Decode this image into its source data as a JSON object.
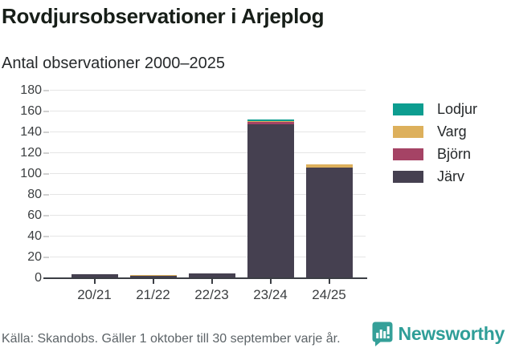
{
  "header": {
    "title": "Rovdjursobservationer i Arjeplog",
    "subtitle": "Antal observationer 2000–2025"
  },
  "footer": {
    "source": "Källa: Skandobs. Gäller 1 oktober till 30 september varje år.",
    "brand": "Newsworthy"
  },
  "colors": {
    "background": "#ffffff",
    "title_text": "#171e18",
    "axis_text": "#3c3f41",
    "gridline": "#e5e5e5",
    "axis_line": "#3b3e44",
    "source_text": "#5d6468",
    "brand_teal": "#2f9e98"
  },
  "chart_data": {
    "type": "bar",
    "stacked": true,
    "title": "Rovdjursobservationer i Arjeplog",
    "subtitle": "Antal observationer 2000–2025",
    "categories": [
      "20/21",
      "21/22",
      "22/23",
      "23/24",
      "24/25"
    ],
    "series": [
      {
        "name": "Lodjur",
        "color": "#0d9d90",
        "values": [
          0,
          0,
          0,
          1,
          0
        ]
      },
      {
        "name": "Varg",
        "color": "#ddb05c",
        "values": [
          0,
          1,
          0,
          1,
          3
        ]
      },
      {
        "name": "Björn",
        "color": "#a54365",
        "values": [
          0,
          0,
          0,
          2,
          0
        ]
      },
      {
        "name": "Järv",
        "color": "#454050",
        "values": [
          4,
          2,
          5,
          148,
          106
        ]
      }
    ],
    "totals": [
      4,
      3,
      5,
      152,
      109
    ],
    "ylim": [
      0,
      180
    ],
    "ytick_step": 20,
    "grid": "horizontal",
    "legend_position": "right",
    "stack_order_bottom_to_top": [
      "Järv",
      "Björn",
      "Varg",
      "Lodjur"
    ],
    "xlabel": "",
    "ylabel": ""
  }
}
